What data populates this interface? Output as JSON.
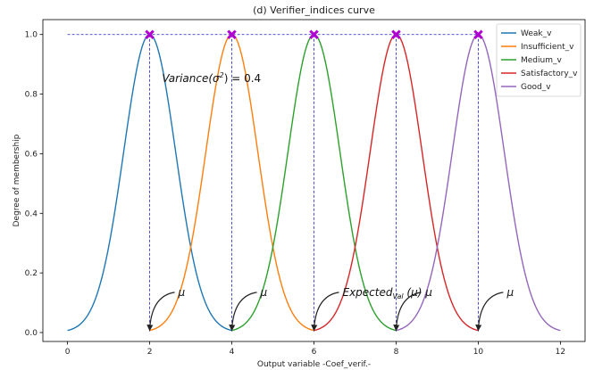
{
  "chart_data": {
    "type": "line",
    "title": "(d) Verifier_indices curve",
    "xlabel": "Output variable -Coef_verif.-",
    "ylabel": "Degree of membership",
    "xlim": [
      -0.6,
      12.6
    ],
    "ylim": [
      -0.03,
      1.05
    ],
    "x_ticks": [
      "0",
      "2",
      "4",
      "6",
      "8",
      "10",
      "12"
    ],
    "y_ticks": [
      "0.0",
      "0.2",
      "0.4",
      "0.6",
      "0.8",
      "1.0"
    ],
    "grid": false,
    "legend_position": "top-right",
    "curve_function": "gaussian",
    "variance": 0.4,
    "x_range": [
      0,
      12
    ],
    "series": [
      {
        "name": "Weak_v",
        "mean": 2,
        "color": "#1f77b4"
      },
      {
        "name": "Insufficient_v",
        "mean": 4,
        "color": "#ff7f0e"
      },
      {
        "name": "Medium_v",
        "mean": 6,
        "color": "#2ca02c"
      },
      {
        "name": "Satisfactory_v",
        "mean": 8,
        "color": "#d62728"
      },
      {
        "name": "Good_v",
        "mean": 10,
        "color": "#9467bd"
      }
    ],
    "peak_markers": {
      "x": [
        2,
        4,
        6,
        8,
        10
      ],
      "y": 1.0,
      "color": "#b000d0",
      "symbol": "X"
    },
    "guide_lines": {
      "color": "#2020c0",
      "style": "dashed",
      "y": 1.0,
      "x_from": 0,
      "x_to": 10
    },
    "annotations": {
      "variance": {
        "prefix": "Variance(",
        "sigma": "σ",
        "power": "2",
        "suffix": ") = 0.4"
      },
      "mu_labels": [
        {
          "x": 2,
          "text": "μ"
        },
        {
          "x": 4,
          "text": "μ"
        },
        {
          "x": 6,
          "expected": "Expected",
          "subscript": "Val",
          "rest": "(μ) μ"
        },
        {
          "x": 8,
          "text": ""
        },
        {
          "x": 10,
          "text": "μ"
        }
      ]
    }
  }
}
